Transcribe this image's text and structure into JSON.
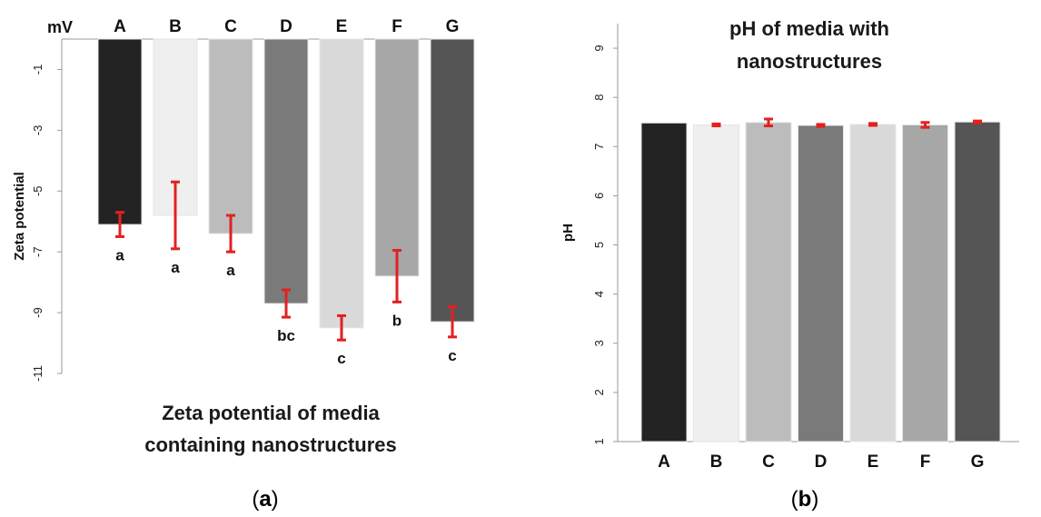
{
  "chart_data": [
    {
      "id": "a",
      "type": "bar",
      "title": "Zeta potential of media containing nanostructures",
      "title_lines": [
        "Zeta potential of media",
        "containing nanostructures"
      ],
      "panel_label": "a",
      "unit_label": "mV",
      "ylabel": "Zeta potential",
      "xlabel": "",
      "categories": [
        "A",
        "B",
        "C",
        "D",
        "E",
        "F",
        "G"
      ],
      "values": [
        -6.1,
        -5.8,
        -6.4,
        -8.7,
        -9.5,
        -7.8,
        -9.3
      ],
      "errors": [
        0.4,
        1.1,
        0.6,
        0.45,
        0.4,
        0.85,
        0.5
      ],
      "significance_letters": [
        "a",
        "a",
        "a",
        "bc",
        "c",
        "b",
        "c"
      ],
      "yticks": [
        -1,
        -3,
        -5,
        -7,
        -9,
        -11
      ],
      "ylim": [
        -11,
        0
      ],
      "x_axis_position": "top",
      "bar_colors": [
        "#232323",
        "#efefef",
        "#bcbcbc",
        "#7a7a7a",
        "#d9d9d9",
        "#a7a7a7",
        "#555555"
      ],
      "error_color": "#e32020",
      "grid": false,
      "legend": "none"
    },
    {
      "id": "b",
      "type": "bar",
      "title": "pH of media with nanostructures",
      "title_lines": [
        "pH of media with",
        "nanostructures"
      ],
      "panel_label": "b",
      "ylabel": "pH",
      "xlabel": "",
      "categories": [
        "A",
        "B",
        "C",
        "D",
        "E",
        "F",
        "G"
      ],
      "values": [
        7.48,
        7.44,
        7.49,
        7.43,
        7.45,
        7.44,
        7.5
      ],
      "errors": [
        0.0,
        0.02,
        0.07,
        0.02,
        0.02,
        0.05,
        0.02
      ],
      "yticks": [
        1,
        2,
        3,
        4,
        5,
        6,
        7,
        8,
        9
      ],
      "ylim": [
        1,
        9.5
      ],
      "bar_colors": [
        "#232323",
        "#efefef",
        "#bcbcbc",
        "#7a7a7a",
        "#d9d9d9",
        "#a7a7a7",
        "#555555"
      ],
      "error_color": "#e32020",
      "grid": false,
      "legend": "none"
    }
  ]
}
